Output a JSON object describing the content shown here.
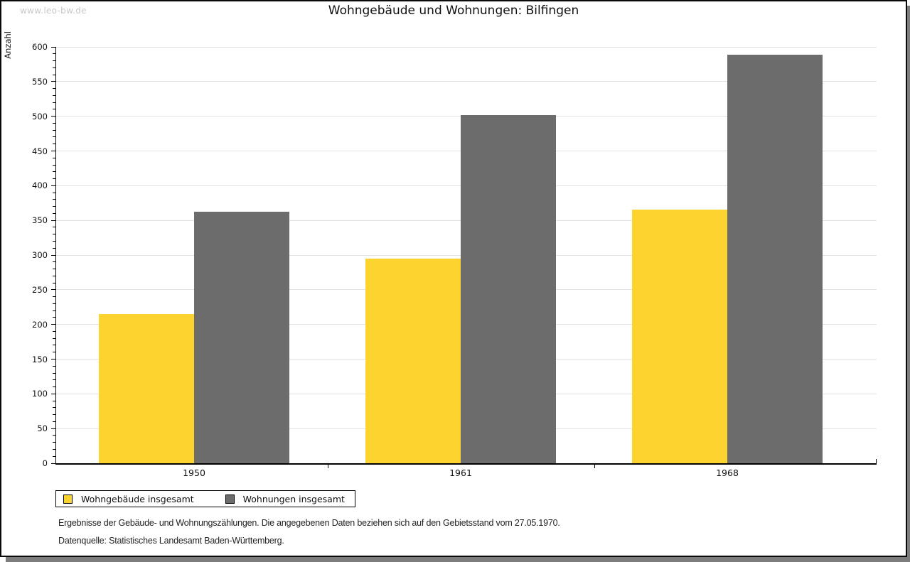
{
  "watermark": "www.leo-bw.de",
  "title": "Wohngebäude und Wohnungen: Bilfingen",
  "chart_data": {
    "type": "bar",
    "title": "Wohngebäude und Wohnungen: Bilfingen",
    "categories": [
      "1950",
      "1961",
      "1968"
    ],
    "series": [
      {
        "name": "Wohngebäude insgesamt",
        "color": "#FCD32F",
        "values": [
          215,
          295,
          366
        ]
      },
      {
        "name": "Wohnungen insgesamt",
        "color": "#6C6C6C",
        "values": [
          362,
          502,
          589
        ]
      }
    ],
    "xlabel": "",
    "ylabel": "Anzahl",
    "ylim": [
      0,
      600
    ],
    "ytick_step": 50,
    "minor_tick_step": 10,
    "grid": true,
    "legend_position": "bottom-left"
  },
  "footnotes": {
    "line1": "Ergebnisse der Gebäude- und Wohnungszählungen. Die angegebenen Daten beziehen sich auf den Gebietsstand vom 27.05.1970.",
    "line2": "Datenquelle: Statistisches Landesamt Baden-Württemberg."
  }
}
